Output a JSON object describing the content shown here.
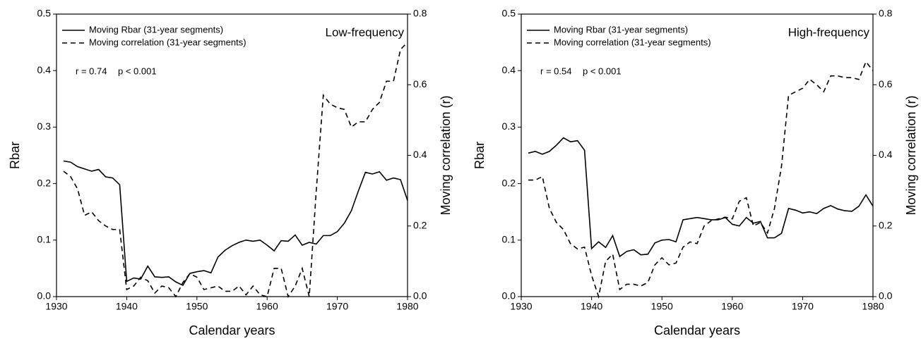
{
  "chart_data": [
    {
      "type": "line",
      "annotations": [
        "Low-frequency",
        "r = 0.74",
        "p < 0.001"
      ],
      "x_label": "Calendar years",
      "y_label": "Rbar",
      "y2_label": "Moving correlation (r)",
      "x": [
        1931,
        1932,
        1933,
        1934,
        1935,
        1936,
        1937,
        1938,
        1939,
        1940,
        1941,
        1942,
        1943,
        1944,
        1945,
        1946,
        1947,
        1948,
        1949,
        1950,
        1951,
        1952,
        1953,
        1954,
        1955,
        1956,
        1957,
        1958,
        1959,
        1960,
        1961,
        1962,
        1963,
        1964,
        1965,
        1966,
        1967,
        1968,
        1969,
        1970,
        1971,
        1972,
        1973,
        1974,
        1975,
        1976,
        1977,
        1978,
        1979,
        1980
      ],
      "series": [
        {
          "name": "Moving Rbar (31-year segments)",
          "color": "#000000",
          "linestyle": "solid",
          "values": [
            0.24,
            0.238,
            0.23,
            0.226,
            0.222,
            0.225,
            0.212,
            0.21,
            0.198,
            0.027,
            0.033,
            0.031,
            0.054,
            0.035,
            0.034,
            0.035,
            0.026,
            0.02,
            0.041,
            0.044,
            0.046,
            0.042,
            0.07,
            0.082,
            0.09,
            0.096,
            0.1,
            0.098,
            0.1,
            0.091,
            0.081,
            0.099,
            0.098,
            0.109,
            0.091,
            0.096,
            0.093,
            0.108,
            0.108,
            0.115,
            0.13,
            0.152,
            0.187,
            0.22,
            0.217,
            0.221,
            0.206,
            0.21,
            0.207,
            0.17
          ]
        },
        {
          "name": "Moving correlation (31-year segments)",
          "color": "#000000",
          "linestyle": "dashed",
          "axis": "y2",
          "values": [
            0.355,
            0.34,
            0.305,
            0.23,
            0.24,
            0.215,
            0.2,
            0.19,
            0.19,
            0.02,
            0.03,
            0.055,
            0.045,
            0.01,
            0.03,
            0.025,
            0.0,
            0.04,
            0.065,
            0.055,
            0.02,
            0.025,
            0.03,
            0.015,
            0.015,
            0.03,
            0.005,
            0.03,
            0.005,
            0.0,
            0.08,
            0.08,
            0.0,
            0.03,
            0.08,
            0.0,
            0.3,
            0.57,
            0.545,
            0.535,
            0.53,
            0.48,
            0.495,
            0.495,
            0.53,
            0.55,
            0.61,
            0.61,
            0.7,
            0.72
          ]
        }
      ],
      "xlim": [
        1930,
        1980
      ],
      "xticks": [
        1930,
        1940,
        1950,
        1960,
        1970,
        1980
      ],
      "ylim": [
        0,
        0.5
      ],
      "yticks": [
        {
          "value": 0,
          "label": "0.0"
        },
        0.1,
        0.2,
        0.3,
        0.4,
        0.5
      ],
      "y2lim": [
        0,
        0.8
      ],
      "y2ticks": [
        {
          "value": 0,
          "label": "0.0"
        },
        0.2,
        0.4,
        0.6,
        0.8
      ],
      "legend": "upper-left"
    },
    {
      "type": "line",
      "annotations": [
        "High-frequency",
        "r = 0.54",
        "p < 0.001"
      ],
      "x_label": "Calendar years",
      "y_label": "Rbar",
      "y2_label": "Moving correlation (r)",
      "x": [
        1931,
        1932,
        1933,
        1934,
        1935,
        1936,
        1937,
        1938,
        1939,
        1940,
        1941,
        1942,
        1943,
        1944,
        1945,
        1946,
        1947,
        1948,
        1949,
        1950,
        1951,
        1952,
        1953,
        1954,
        1955,
        1956,
        1957,
        1958,
        1959,
        1960,
        1961,
        1962,
        1963,
        1964,
        1965,
        1966,
        1967,
        1968,
        1969,
        1970,
        1971,
        1972,
        1973,
        1974,
        1975,
        1976,
        1977,
        1978,
        1979,
        1980
      ],
      "series": [
        {
          "name": "Moving Rbar (31-year segments)",
          "color": "#000000",
          "linestyle": "solid",
          "values": [
            0.254,
            0.257,
            0.252,
            0.257,
            0.268,
            0.281,
            0.274,
            0.276,
            0.259,
            0.085,
            0.097,
            0.087,
            0.108,
            0.071,
            0.08,
            0.083,
            0.074,
            0.075,
            0.095,
            0.1,
            0.101,
            0.097,
            0.136,
            0.138,
            0.14,
            0.138,
            0.136,
            0.136,
            0.14,
            0.128,
            0.125,
            0.14,
            0.13,
            0.133,
            0.104,
            0.104,
            0.112,
            0.156,
            0.153,
            0.148,
            0.15,
            0.147,
            0.156,
            0.161,
            0.155,
            0.152,
            0.151,
            0.16,
            0.18,
            0.16
          ]
        },
        {
          "name": "Moving correlation (31-year segments)",
          "color": "#000000",
          "linestyle": "dashed",
          "axis": "y2",
          "values": [
            0.33,
            0.33,
            0.34,
            0.25,
            0.21,
            0.19,
            0.15,
            0.135,
            0.14,
            0.06,
            0.0,
            0.1,
            0.12,
            0.02,
            0.035,
            0.035,
            0.03,
            0.04,
            0.09,
            0.11,
            0.09,
            0.095,
            0.14,
            0.155,
            0.15,
            0.2,
            0.215,
            0.22,
            0.225,
            0.22,
            0.27,
            0.28,
            0.2,
            0.21,
            0.18,
            0.25,
            0.37,
            0.57,
            0.58,
            0.59,
            0.615,
            0.6,
            0.58,
            0.625,
            0.625,
            0.62,
            0.62,
            0.615,
            0.665,
            0.64
          ]
        }
      ],
      "xlim": [
        1930,
        1980
      ],
      "xticks": [
        1930,
        1940,
        1950,
        1960,
        1970,
        1980
      ],
      "ylim": [
        0,
        0.5
      ],
      "yticks": [
        {
          "value": 0,
          "label": "0.0"
        },
        0.1,
        0.2,
        0.3,
        0.4,
        0.5
      ],
      "y2lim": [
        0,
        0.8
      ],
      "y2ticks": [
        {
          "value": 0,
          "label": "0.0"
        },
        0.2,
        0.4,
        0.6,
        0.8
      ],
      "legend": "upper-left"
    }
  ]
}
